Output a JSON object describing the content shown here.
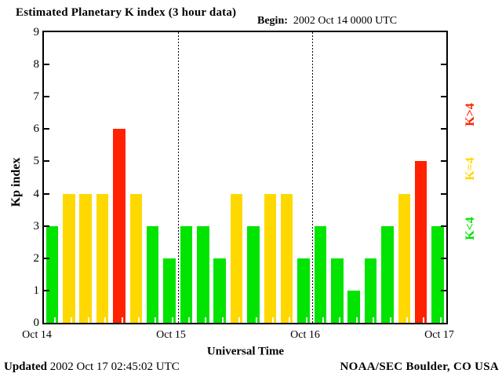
{
  "title": "Estimated Planetary K index (3 hour data)",
  "begin": {
    "label": "Begin:",
    "value": "2002 Oct 14 0000 UTC"
  },
  "axes": {
    "y_label": "Kp index",
    "y_ticks": [
      0,
      1,
      2,
      3,
      4,
      5,
      6,
      7,
      8,
      9
    ],
    "x_label": "Universal Time",
    "x_ticks": [
      "Oct 14",
      "Oct 15",
      "Oct 16",
      "Oct 17"
    ]
  },
  "colors": {
    "green": "#00e400",
    "yellow": "#ffd800",
    "red": "#ff2100"
  },
  "legend": [
    {
      "label": "K<4",
      "color_key": "green"
    },
    {
      "label": "K=4",
      "color_key": "yellow"
    },
    {
      "label": "K>4",
      "color_key": "red"
    }
  ],
  "footer": {
    "updated_label": "Updated",
    "updated_value": "2002 Oct 17 02:45:02 UTC",
    "source": "NOAA/SEC Boulder, CO USA"
  },
  "chart_data": {
    "type": "bar",
    "title": "Estimated Planetary K index (3 hour data)",
    "begin": "2002 Oct 14 0000 UTC",
    "xlabel": "Universal Time",
    "ylabel": "Kp index",
    "ylim": [
      0,
      9
    ],
    "interval_hours": 3,
    "x_day_labels": [
      "Oct 14",
      "Oct 15",
      "Oct 16",
      "Oct 17"
    ],
    "days": [
      {
        "date": "2002 Oct 14",
        "values": [
          3,
          4,
          4,
          4,
          6,
          4,
          3,
          2
        ]
      },
      {
        "date": "2002 Oct 15",
        "values": [
          3,
          3,
          2,
          4,
          3,
          4,
          4,
          2
        ]
      },
      {
        "date": "2002 Oct 16",
        "values": [
          3,
          2,
          1,
          2,
          3,
          4,
          5,
          3
        ]
      }
    ],
    "color_rule": [
      {
        "condition": "K<4",
        "color": "#00e400"
      },
      {
        "condition": "K=4",
        "color": "#ffd800"
      },
      {
        "condition": "K>4",
        "color": "#ff2100"
      }
    ],
    "grid": "dotted vertical lines at day boundaries",
    "legend_position": "right side, rotated 90deg"
  }
}
